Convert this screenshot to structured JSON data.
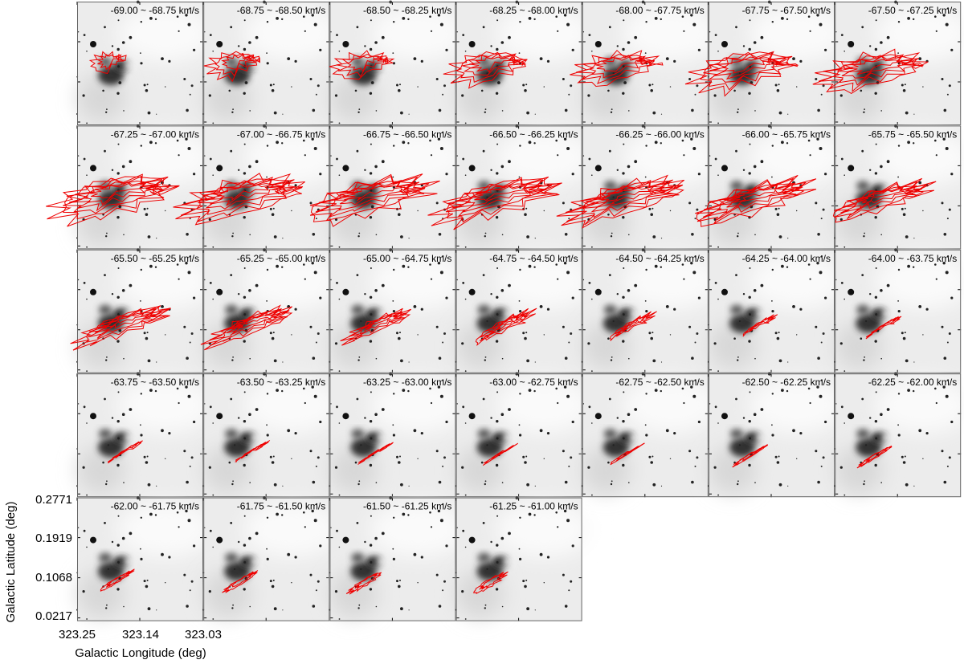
{
  "panels": [
    {
      "label": "-69.00 ~ -68.75 km/s"
    },
    {
      "label": "-68.75 ~ -68.50 km/s"
    },
    {
      "label": "-68.50 ~ -68.25 km/s"
    },
    {
      "label": "-68.25 ~ -68.00 km/s"
    },
    {
      "label": "-68.00 ~ -67.75 km/s"
    },
    {
      "label": "-67.75 ~ -67.50 km/s"
    },
    {
      "label": "-67.50 ~ -67.25 km/s"
    },
    {
      "label": "-67.25 ~ -67.00 km/s"
    },
    {
      "label": "-67.00 ~ -66.75 km/s"
    },
    {
      "label": "-66.75 ~ -66.50 km/s"
    },
    {
      "label": "-66.50 ~ -66.25 km/s"
    },
    {
      "label": "-66.25 ~ -66.00 km/s"
    },
    {
      "label": "-66.00 ~ -65.75 km/s"
    },
    {
      "label": "-65.75 ~ -65.50 km/s"
    },
    {
      "label": "-65.50 ~ -65.25 km/s"
    },
    {
      "label": "-65.25 ~ -65.00 km/s"
    },
    {
      "label": "-65.00 ~ -64.75 km/s"
    },
    {
      "label": "-64.75 ~ -64.50 km/s"
    },
    {
      "label": "-64.50 ~ -64.25 km/s"
    },
    {
      "label": "-64.25 ~ -64.00 km/s"
    },
    {
      "label": "-64.00 ~ -63.75 km/s"
    },
    {
      "label": "-63.75 ~ -63.50 km/s"
    },
    {
      "label": "-63.50 ~ -63.25 km/s"
    },
    {
      "label": "-63.25 ~ -63.00 km/s"
    },
    {
      "label": "-63.00 ~ -62.75 km/s"
    },
    {
      "label": "-62.75 ~ -62.50 km/s"
    },
    {
      "label": "-62.50 ~ -62.25 km/s"
    },
    {
      "label": "-62.25 ~ -62.00 km/s"
    },
    {
      "label": "-62.00 ~ -61.75 km/s"
    },
    {
      "label": "-61.75 ~ -61.50 km/s"
    },
    {
      "label": "-61.50 ~ -61.25 km/s"
    },
    {
      "label": "-61.25 ~ -61.00 km/s"
    }
  ],
  "axes": {
    "y_label": "Galactic Latitude (deg)",
    "x_label": "Galactic Longitude (deg)",
    "y_ticks": [
      "0.2771",
      "0.1919",
      "0.1068",
      "0.0217"
    ],
    "x_ticks": [
      "323.25",
      "323.14",
      "323.03"
    ]
  }
}
